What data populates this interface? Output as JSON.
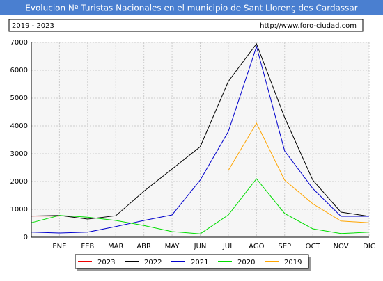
{
  "chart_data": {
    "type": "line",
    "title": "Evolucion Nº Turistas Nacionales en el municipio de Sant Llorenç des Cardassar",
    "subtitle": "2019 - 2023",
    "source": "http://www.foro-ciudad.com",
    "categories": [
      null,
      "ENE",
      "FEB",
      "MAR",
      "ABR",
      "MAY",
      "JUN",
      "JUL",
      "AGO",
      "SEP",
      "OCT",
      "NOV",
      "DIC"
    ],
    "series": [
      {
        "name": "2023",
        "color": "#ee0000",
        "values": [
          760,
          760,
          null,
          null,
          null,
          null,
          null,
          null,
          null,
          null,
          null,
          null,
          null
        ]
      },
      {
        "name": "2022",
        "color": "#000000",
        "values": [
          760,
          780,
          650,
          770,
          1650,
          2450,
          3250,
          5600,
          6950,
          4300,
          2050,
          900,
          750
        ]
      },
      {
        "name": "2021",
        "color": "#0000cc",
        "values": [
          180,
          150,
          180,
          380,
          600,
          800,
          2050,
          3800,
          6850,
          3100,
          1750,
          750,
          750
        ]
      },
      {
        "name": "2020",
        "color": "#00dd00",
        "values": [
          520,
          780,
          720,
          600,
          420,
          200,
          120,
          800,
          2100,
          850,
          300,
          130,
          180
        ]
      },
      {
        "name": "2019",
        "color": "#ffa500",
        "values": [
          null,
          null,
          null,
          null,
          null,
          null,
          null,
          2400,
          4100,
          2050,
          1200,
          580,
          520
        ]
      }
    ],
    "ylim": [
      0,
      7000
    ],
    "yticks": [
      0,
      1000,
      2000,
      3000,
      4000,
      5000,
      6000,
      7000
    ],
    "grid": true
  }
}
